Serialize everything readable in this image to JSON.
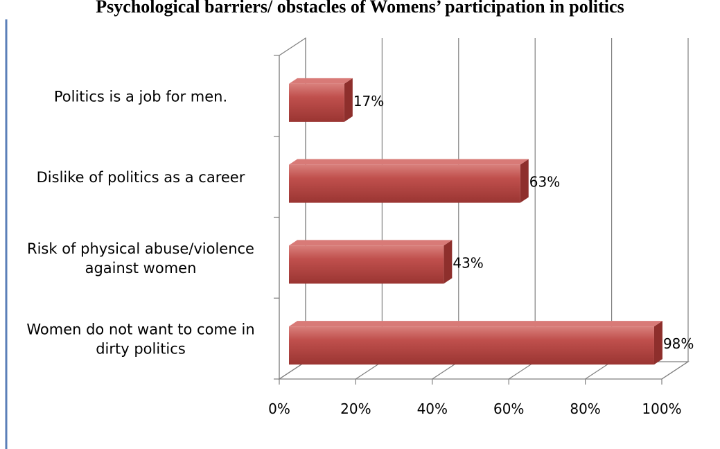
{
  "title": "Psychological barriers/ obstacles of Womens’ participation in politics",
  "chart_data": {
    "type": "bar",
    "orientation": "horizontal",
    "categories": [
      [
        "Politics is a job for men."
      ],
      [
        "Dislike of politics as a career"
      ],
      [
        "Risk of physical abuse/violence",
        "against women"
      ],
      [
        "Women do not want to come in",
        "dirty politics"
      ]
    ],
    "values": [
      17,
      63,
      43,
      98
    ],
    "data_labels": [
      "17%",
      "63%",
      "43%",
      "98%"
    ],
    "xlim": [
      0,
      100
    ],
    "xticks": [
      0,
      20,
      40,
      60,
      80,
      100
    ],
    "xtick_labels": [
      "0%",
      "20%",
      "40%",
      "60%",
      "80%",
      "100%"
    ],
    "grid": true,
    "three_d": true,
    "colors": {
      "bar": "#c0504d",
      "bar_top": "#d87a77",
      "bar_side": "#8e2f2c",
      "grid": "#7f7f7f",
      "frame": "#5b7fb8"
    }
  }
}
